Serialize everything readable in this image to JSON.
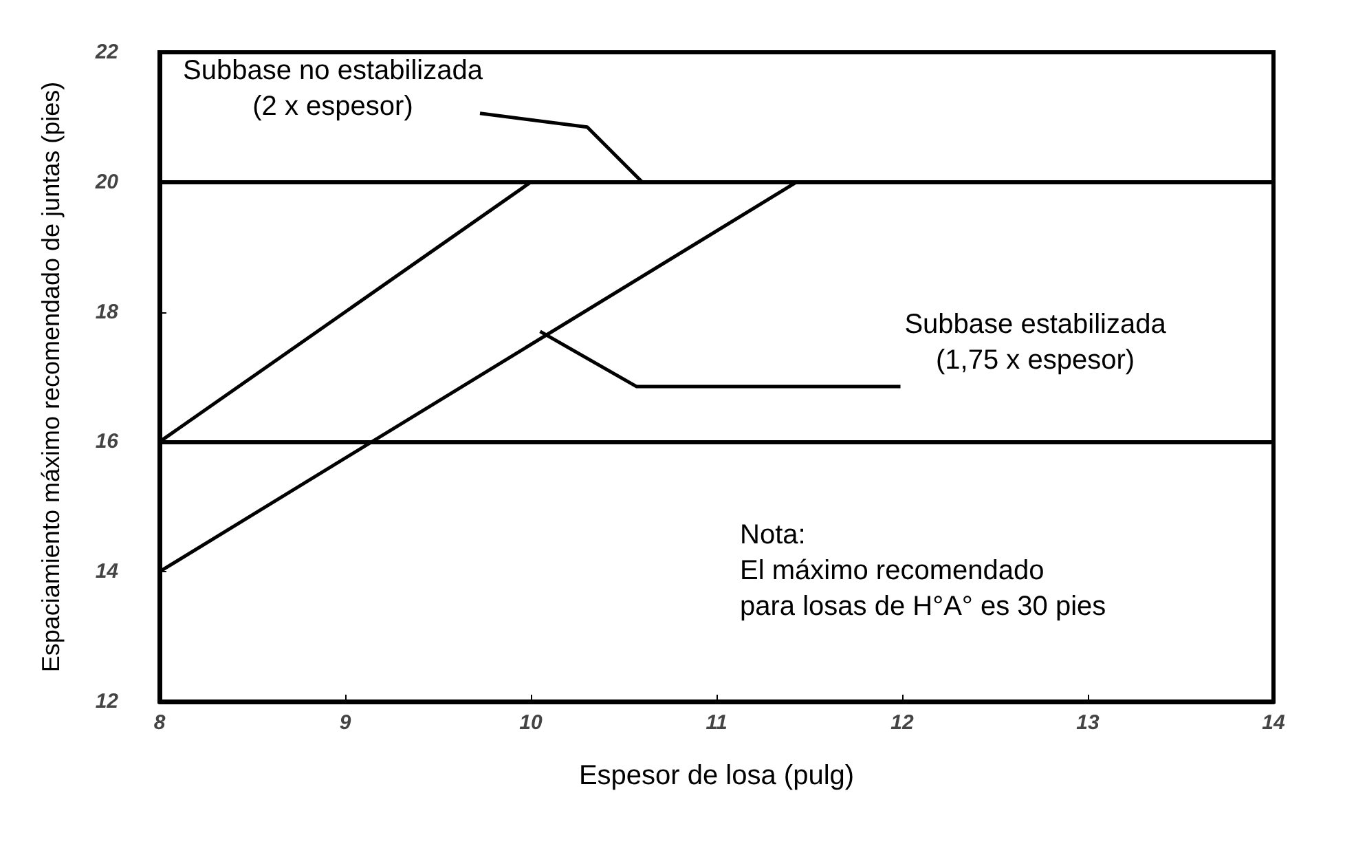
{
  "chart_data": {
    "type": "line",
    "xlabel": "Espesor de losa (pulg)",
    "ylabel": "Espaciamiento máximo recomendado de juntas (pies)",
    "xlim": [
      8,
      14
    ],
    "ylim": [
      12,
      22
    ],
    "xticks": [
      8,
      9,
      10,
      11,
      12,
      13,
      14
    ],
    "yticks": [
      12,
      14,
      16,
      18,
      20,
      22
    ],
    "grid": false,
    "marker": "none",
    "line_style": "solid",
    "series": [
      {
        "color": "#000000",
        "x": [
          8,
          10
        ],
        "values": [
          16,
          20
        ]
      },
      {
        "color": "#000000",
        "x": [
          8,
          11.43
        ],
        "values": [
          14,
          20
        ]
      }
    ],
    "ref_lines": [
      {
        "axis": "y",
        "value": 20,
        "label": null,
        "color": "#000000"
      },
      {
        "axis": "y",
        "value": 16,
        "label": null,
        "color": "#000000"
      }
    ],
    "annotations": [
      {
        "text": "Subbase no estabilizada\n(2 x espesor)",
        "x": 10.6,
        "y": 20
      },
      {
        "text": "Subbase estabilizada\n(1,75 x espesor)",
        "x": 10.05,
        "y": 17.7
      },
      "Nota:\nEl máximo recomendado\npara losas de H°A° es 30 pies"
    ]
  }
}
